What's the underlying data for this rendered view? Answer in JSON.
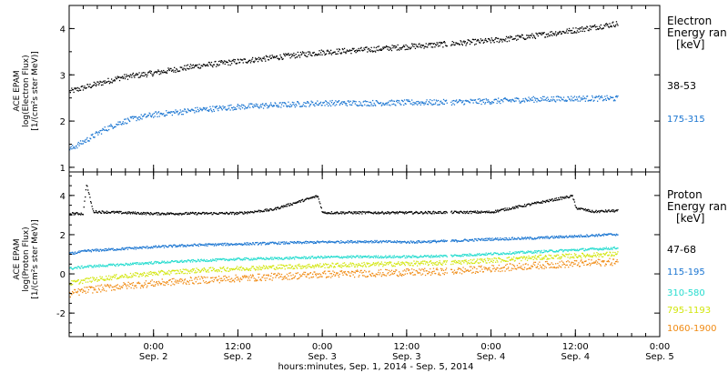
{
  "x_axis": {
    "title": "hours:minutes, Sep.  1, 2014 - Sep.  5, 2014",
    "ticks": [
      {
        "t": 0.5,
        "time": "0:00",
        "date": "Sep. 2"
      },
      {
        "t": 1.0,
        "time": "12:00",
        "date": "Sep. 2"
      },
      {
        "t": 1.5,
        "time": "0:00",
        "date": "Sep. 3"
      },
      {
        "t": 2.0,
        "time": "12:00",
        "date": "Sep. 3"
      },
      {
        "t": 2.5,
        "time": "0:00",
        "date": "Sep. 4"
      },
      {
        "t": 3.0,
        "time": "12:00",
        "date": "Sep. 4"
      },
      {
        "t": 3.5,
        "time": "0:00",
        "date": "Sep. 5"
      }
    ]
  },
  "colors": {
    "black": "#000000",
    "blue": "#1a75d1",
    "cyan": "#26dccf",
    "yellow": "#d2e60c",
    "orange": "#f08a12"
  },
  "chart_data": [
    {
      "type": "scatter",
      "panel": "electron",
      "ylabel": [
        "ACE EPAM",
        "log(Electron Flux)",
        "[1/(cm²s ster MeV)]"
      ],
      "legend_title": [
        "Electron",
        "Energy ran",
        "[keV]"
      ],
      "ylim": [
        0.9,
        4.5
      ],
      "yticks": [
        1,
        2,
        3,
        4
      ],
      "xlim_days": [
        0,
        3.5
      ],
      "data_gap_days": [
        2.24,
        2.26
      ],
      "series": [
        {
          "name": "38-53",
          "color": "#000000",
          "x": [
            0.0,
            0.1,
            0.2,
            0.3,
            0.5,
            0.75,
            1.0,
            1.25,
            1.5,
            1.75,
            2.0,
            2.25,
            2.5,
            2.75,
            3.0,
            3.25
          ],
          "y": [
            2.65,
            2.75,
            2.85,
            2.95,
            3.05,
            3.2,
            3.3,
            3.4,
            3.5,
            3.55,
            3.62,
            3.68,
            3.75,
            3.85,
            3.98,
            4.12
          ]
        },
        {
          "name": "175-315",
          "color": "#1a75d1",
          "x": [
            0.0,
            0.1,
            0.2,
            0.3,
            0.4,
            0.5,
            0.75,
            1.0,
            1.25,
            1.5,
            1.75,
            2.0,
            2.25,
            2.5,
            2.75,
            3.0,
            3.25
          ],
          "y": [
            1.4,
            1.6,
            1.82,
            1.98,
            2.08,
            2.15,
            2.25,
            2.32,
            2.36,
            2.4,
            2.4,
            2.41,
            2.42,
            2.44,
            2.48,
            2.5,
            2.5
          ]
        }
      ]
    },
    {
      "type": "scatter",
      "panel": "proton",
      "ylabel": [
        "ACE EPAM",
        "log(Proton Flux)",
        "[1/(cm²s ster MeV)]"
      ],
      "legend_title": [
        "Proton",
        "Energy ran",
        "[keV]"
      ],
      "ylim": [
        -3.2,
        5.2
      ],
      "yticks": [
        -2,
        0,
        2,
        4
      ],
      "xlim_days": [
        0,
        3.5
      ],
      "data_gap_days": [
        2.24,
        2.26
      ],
      "series": [
        {
          "name": "47-68",
          "color": "#000000",
          "x": [
            0.0,
            0.08,
            0.1,
            0.14,
            0.5,
            1.0,
            1.2,
            1.47,
            1.5,
            2.0,
            2.5,
            2.98,
            3.0,
            3.1,
            3.25
          ],
          "y": [
            3.1,
            3.1,
            4.6,
            3.2,
            3.1,
            3.12,
            3.3,
            4.0,
            3.15,
            3.15,
            3.18,
            4.0,
            3.4,
            3.2,
            3.25
          ]
        },
        {
          "name": "115-195",
          "color": "#1a75d1",
          "x": [
            0.0,
            0.1,
            0.3,
            0.5,
            0.75,
            1.0,
            1.25,
            1.5,
            1.75,
            2.0,
            2.25,
            2.5,
            2.75,
            3.0,
            3.25
          ],
          "y": [
            1.05,
            1.2,
            1.3,
            1.4,
            1.5,
            1.55,
            1.6,
            1.65,
            1.68,
            1.65,
            1.7,
            1.8,
            1.85,
            1.95,
            2.05
          ]
        },
        {
          "name": "310-580",
          "color": "#26dccf",
          "x": [
            0.0,
            0.1,
            0.3,
            0.5,
            0.75,
            1.0,
            1.25,
            1.5,
            1.75,
            2.0,
            2.25,
            2.5,
            2.75,
            3.0,
            3.25
          ],
          "y": [
            0.3,
            0.4,
            0.5,
            0.6,
            0.7,
            0.78,
            0.82,
            0.88,
            0.9,
            0.9,
            0.95,
            1.05,
            1.15,
            1.25,
            1.35
          ]
        },
        {
          "name": "795-1193",
          "color": "#d2e60c",
          "x": [
            0.0,
            0.1,
            0.3,
            0.5,
            0.75,
            1.0,
            1.25,
            1.5,
            1.75,
            2.0,
            2.25,
            2.5,
            2.75,
            3.0,
            3.25
          ],
          "y": [
            -0.45,
            -0.3,
            -0.1,
            0.05,
            0.2,
            0.3,
            0.38,
            0.45,
            0.5,
            0.55,
            0.6,
            0.72,
            0.85,
            0.95,
            1.05
          ]
        },
        {
          "name": "1060-1900",
          "color": "#f08a12",
          "x": [
            0.0,
            0.1,
            0.3,
            0.5,
            0.75,
            1.0,
            1.25,
            1.5,
            1.75,
            2.0,
            2.25,
            2.5,
            2.75,
            3.0,
            3.25
          ],
          "y": [
            -1.0,
            -0.8,
            -0.6,
            -0.45,
            -0.3,
            -0.2,
            -0.1,
            0.0,
            0.05,
            0.1,
            0.15,
            0.3,
            0.45,
            0.55,
            0.65
          ]
        }
      ]
    }
  ]
}
